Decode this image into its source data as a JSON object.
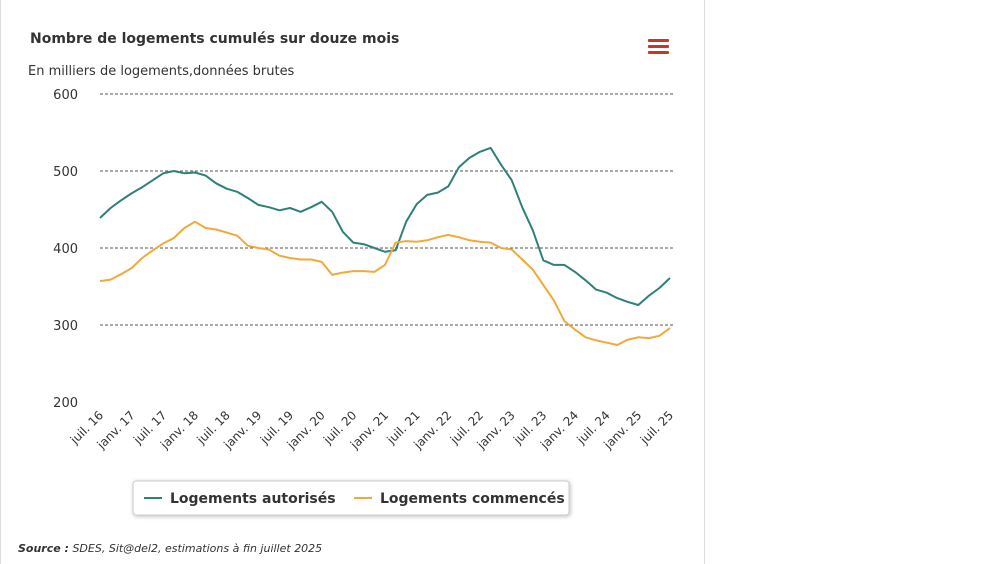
{
  "chart_data": {
    "type": "line",
    "title": "Nombre de logements cumulés sur douze mois",
    "subtitle": "En milliers de logements,données brutes",
    "source_label": "Source :",
    "source": "SDES, Sit@del2, estimations à fin juillet 2025",
    "categories": [
      "juil. 16",
      null,
      null,
      "janv. 17",
      null,
      null,
      "juil. 17",
      null,
      null,
      "janv. 18",
      null,
      null,
      "juil. 18",
      null,
      null,
      "janv. 19",
      null,
      null,
      "juil. 19",
      null,
      null,
      "janv. 20",
      null,
      null,
      "juil. 20",
      null,
      null,
      "janv. 21",
      null,
      null,
      "juil. 21",
      null,
      null,
      "janv. 22",
      null,
      null,
      "juil. 22",
      null,
      null,
      "janv. 23",
      null,
      null,
      "juil. 23",
      null,
      null,
      "janv. 24",
      null,
      null,
      "juil. 24",
      null,
      null,
      "janv. 25",
      null,
      null,
      "juil. 25"
    ],
    "series": [
      {
        "name": "Logements autorisés",
        "color": "#2e8078",
        "values": [
          439,
          452,
          462,
          471,
          479,
          488,
          497,
          500,
          497,
          498,
          494,
          484,
          477,
          473,
          465,
          456,
          453,
          449,
          452,
          447,
          453,
          460,
          447,
          421,
          407,
          405,
          400,
          395,
          397,
          434,
          457,
          469,
          472,
          480,
          505,
          517,
          525,
          530,
          508,
          488,
          453,
          423,
          384,
          378,
          378,
          369,
          358,
          346,
          342,
          335,
          330,
          326,
          338,
          348,
          361
        ]
      },
      {
        "name": "Logements commencés",
        "color": "#f2a93b",
        "values": [
          357,
          359,
          366,
          374,
          387,
          397,
          406,
          413,
          426,
          434,
          426,
          424,
          420,
          416,
          403,
          400,
          398,
          390,
          387,
          385,
          385,
          382,
          365,
          368,
          370,
          370,
          369,
          378,
          407,
          409,
          408,
          410,
          414,
          417,
          414,
          410,
          408,
          407,
          400,
          398,
          385,
          372,
          352,
          332,
          305,
          294,
          284,
          280,
          277,
          274,
          281,
          284,
          283,
          286,
          296
        ]
      }
    ],
    "ylim": [
      200,
      600
    ],
    "yticks": [
      200,
      300,
      400,
      500,
      600
    ],
    "grid": true
  }
}
